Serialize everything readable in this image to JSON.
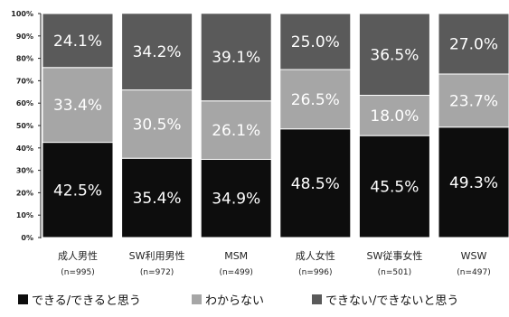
{
  "colors": {
    "background": "#ffffff",
    "axis": "#222222",
    "segment_text": "#ffffff"
  },
  "chart_data": {
    "type": "bar",
    "stacked": true,
    "title": "",
    "xlabel": "",
    "ylabel": "",
    "ylim": [
      0,
      100
    ],
    "y_ticks": [
      "0%",
      "10%",
      "20%",
      "30%",
      "40%",
      "50%",
      "60%",
      "70%",
      "80%",
      "90%",
      "100%"
    ],
    "categories": [
      {
        "label": "成人男性",
        "sub": "(n=995)"
      },
      {
        "label": "SW利用男性",
        "sub": "(n=972)"
      },
      {
        "label": "MSM",
        "sub": "(n=499)"
      },
      {
        "label": "成人女性",
        "sub": "(n=996)"
      },
      {
        "label": "SW従事女性",
        "sub": "(n=501)"
      },
      {
        "label": "WSW",
        "sub": "(n=497)"
      }
    ],
    "series": [
      {
        "name": "できる/できると思う",
        "color": "#0d0d0d",
        "values": [
          42.5,
          35.4,
          34.9,
          48.5,
          45.5,
          49.3
        ],
        "labels": [
          "42.5%",
          "35.4%",
          "34.9%",
          "48.5%",
          "45.5%",
          "49.3%"
        ]
      },
      {
        "name": "わからない",
        "color": "#a6a6a6",
        "values": [
          33.4,
          30.5,
          26.1,
          26.5,
          18.0,
          23.7
        ],
        "labels": [
          "33.4%",
          "30.5%",
          "26.1%",
          "26.5%",
          "18.0%",
          "23.7%"
        ]
      },
      {
        "name": "できない/できないと思う",
        "color": "#5a5a5a",
        "values": [
          24.1,
          34.2,
          39.1,
          25.0,
          36.5,
          27.0
        ],
        "labels": [
          "24.1%",
          "34.2%",
          "39.1%",
          "25.0%",
          "36.5%",
          "27.0%"
        ]
      }
    ],
    "grid": false,
    "legend_position": "bottom"
  }
}
